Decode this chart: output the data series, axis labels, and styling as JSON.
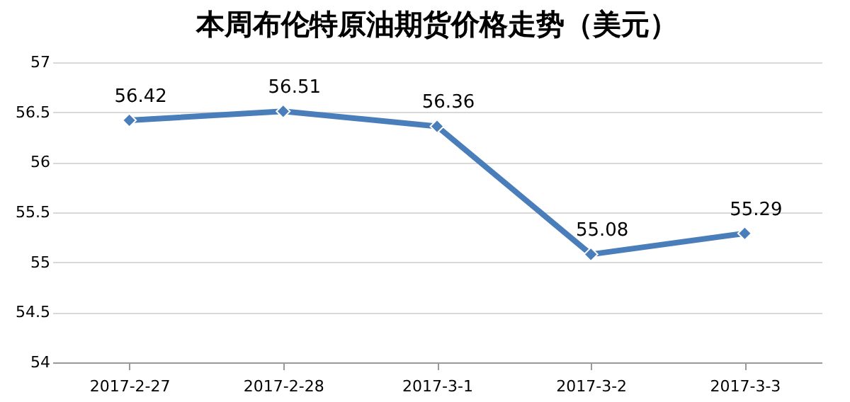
{
  "chart_data": {
    "type": "line",
    "title": "本周布伦特原油期货价格走势（美元）",
    "categories": [
      "2017-2-27",
      "2017-2-28",
      "2017-3-1",
      "2017-3-2",
      "2017-3-3"
    ],
    "series": [
      {
        "color": "#4a7ebb",
        "values": [
          56.42,
          56.51,
          56.36,
          55.08,
          55.29
        ]
      }
    ],
    "ylim": [
      54,
      57
    ],
    "yticks": [
      54,
      54.5,
      55,
      55.5,
      56,
      56.5,
      57
    ],
    "grid": "y",
    "marker": "diamond",
    "line_style": "solid",
    "data_labels": true
  }
}
